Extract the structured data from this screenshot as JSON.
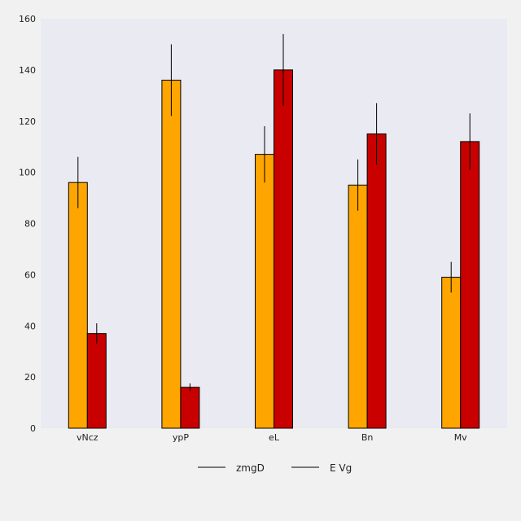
{
  "chart_data": {
    "type": "bar",
    "title": "",
    "xlabel": "",
    "ylabel": "",
    "categories": [
      "vNcz",
      "ypP",
      "eL",
      "Bn",
      "Mv"
    ],
    "ylim": [
      0,
      160
    ],
    "yticks": [
      0,
      20,
      40,
      60,
      80,
      100,
      120,
      140,
      160
    ],
    "grid": false,
    "legend_position": "bottom-center",
    "background_color": "#eaeaf2",
    "series": [
      {
        "name": "zmgD",
        "color": "#ffa500",
        "values": [
          96,
          136,
          107,
          95,
          59
        ],
        "errors": [
          10,
          14,
          11,
          10,
          6
        ]
      },
      {
        "name": "E Vg",
        "color": "#c80000",
        "values": [
          37,
          16,
          140,
          115,
          112
        ],
        "errors": [
          4,
          1.5,
          14,
          12,
          11
        ]
      }
    ]
  }
}
